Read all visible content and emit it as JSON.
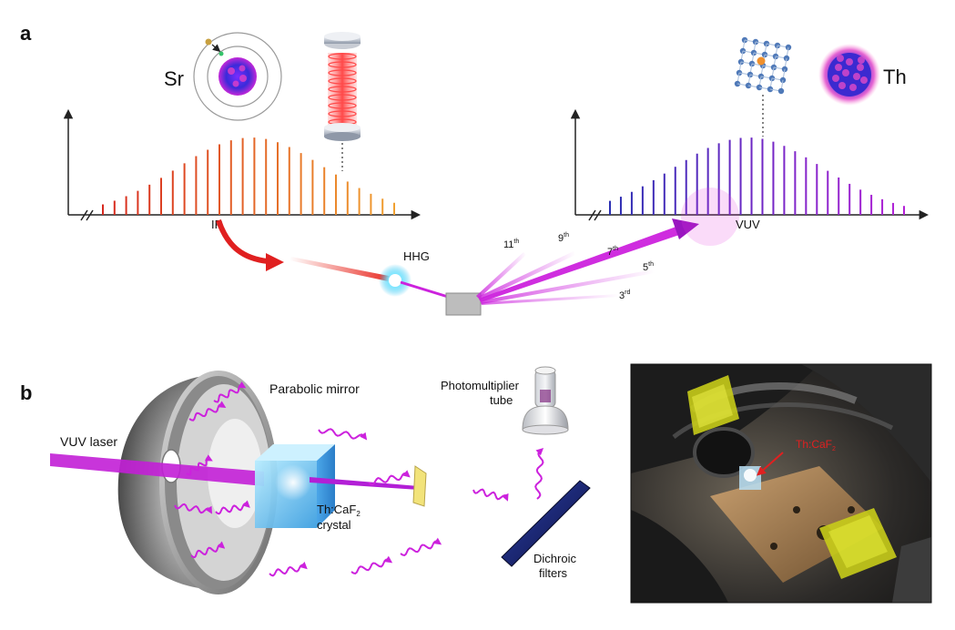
{
  "panel_a": {
    "label": "a",
    "sr_label": "Sr",
    "th_label": "Th",
    "ir_label": "IR",
    "vuv_label": "VUV",
    "hhg_label": "HHG",
    "harmonics": [
      {
        "base": "11",
        "sup": "th"
      },
      {
        "base": "9",
        "sup": "th"
      },
      {
        "base": "7",
        "sup": "th"
      },
      {
        "base": "5",
        "sup": "th"
      },
      {
        "base": "3",
        "sup": "rd"
      }
    ]
  },
  "panel_b": {
    "label": "b",
    "vuv_laser": "VUV laser",
    "parabolic_mirror": "Parabolic mirror",
    "crystal_line1_base": "Th:CaF",
    "crystal_line1_sub": "2",
    "crystal_line2": "crystal",
    "pmt_line1": "Photomultiplier",
    "pmt_line2": "tube",
    "dichroic_line1": "Dichroic",
    "dichroic_line2": "filters",
    "photo_label_base": "Th:CaF",
    "photo_label_sub": "2"
  },
  "colors": {
    "ir_red": "#d7281e",
    "ir_orange": "#f0a030",
    "vuv_purple": "#b21fd6",
    "vuv_blue": "#2b2fb3",
    "beam_magenta": "#cc22dd",
    "photo_label": "#e02020"
  }
}
